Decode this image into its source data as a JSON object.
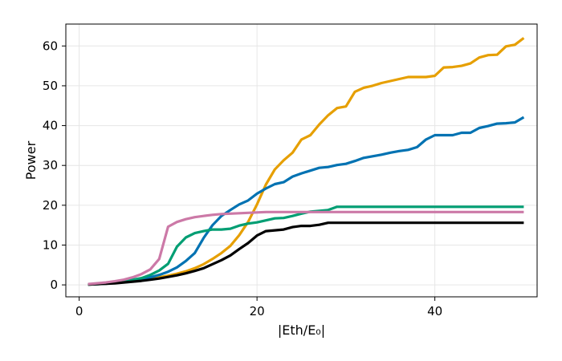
{
  "chart_data": {
    "type": "line",
    "title": "",
    "xlabel": "|Eth/E₀|",
    "ylabel": "Power",
    "xlim": [
      -1.5,
      51.5
    ],
    "ylim": [
      -3,
      65.5
    ],
    "xticks": [
      0,
      20,
      40
    ],
    "yticks": [
      0,
      10,
      20,
      30,
      40,
      50,
      60
    ],
    "grid": true,
    "legend": "none",
    "x": [
      1,
      2,
      3,
      4,
      5,
      6,
      7,
      8,
      9,
      10,
      11,
      12,
      13,
      14,
      15,
      16,
      17,
      18,
      19,
      20,
      21,
      22,
      23,
      24,
      25,
      26,
      27,
      28,
      29,
      30,
      31,
      32,
      33,
      34,
      35,
      36,
      37,
      38,
      39,
      40,
      41,
      42,
      43,
      44,
      45,
      46,
      47,
      48,
      49,
      50
    ],
    "series": [
      {
        "color": "#E69F00",
        "values": [
          0.1,
          0.2,
          0.3,
          0.5,
          0.7,
          0.9,
          1.2,
          1.5,
          1.9,
          2.3,
          2.8,
          3.4,
          4.2,
          5.2,
          6.5,
          8.0,
          9.8,
          12.5,
          15.8,
          20.2,
          25.2,
          29.0,
          31.3,
          33.2,
          36.5,
          37.6,
          40.3,
          42.6,
          44.4,
          44.8,
          48.5,
          49.5,
          50.0,
          50.7,
          51.2,
          51.7,
          52.2,
          52.2,
          52.2,
          52.5,
          54.6,
          54.7,
          55.0,
          55.6,
          57.1,
          57.7,
          57.8,
          59.9,
          60.3,
          62.0
        ]
      },
      {
        "color": "#0072B2",
        "values": [
          0.1,
          0.2,
          0.3,
          0.5,
          0.7,
          1.0,
          1.4,
          1.9,
          2.5,
          3.3,
          4.4,
          6.0,
          8.0,
          11.8,
          15.0,
          17.3,
          18.8,
          20.2,
          21.2,
          22.9,
          24.2,
          25.3,
          25.8,
          27.2,
          28.0,
          28.7,
          29.4,
          29.6,
          30.1,
          30.4,
          31.1,
          31.9,
          32.3,
          32.7,
          33.2,
          33.6,
          33.9,
          34.6,
          36.5,
          37.6,
          37.6,
          37.6,
          38.2,
          38.2,
          39.4,
          39.9,
          40.5,
          40.6,
          40.8,
          42.1
        ]
      },
      {
        "color": "#009E73",
        "values": [
          0.1,
          0.2,
          0.4,
          0.6,
          0.9,
          1.3,
          1.7,
          2.5,
          3.6,
          5.3,
          9.6,
          11.9,
          13.0,
          13.5,
          13.9,
          13.9,
          14.1,
          14.9,
          15.4,
          15.7,
          16.2,
          16.7,
          16.8,
          17.3,
          17.9,
          18.4,
          18.6,
          18.8,
          19.6,
          19.6,
          19.6,
          19.6,
          19.6,
          19.6,
          19.6,
          19.6,
          19.6,
          19.6,
          19.6,
          19.6,
          19.6,
          19.6,
          19.6,
          19.6,
          19.6,
          19.6,
          19.6,
          19.6,
          19.6,
          19.6
        ]
      },
      {
        "color": "#000000",
        "values": [
          0.1,
          0.2,
          0.3,
          0.4,
          0.6,
          0.8,
          1.0,
          1.3,
          1.6,
          2.0,
          2.4,
          2.9,
          3.5,
          4.2,
          5.2,
          6.2,
          7.4,
          9.0,
          10.5,
          12.4,
          13.5,
          13.7,
          13.9,
          14.5,
          14.8,
          14.8,
          15.1,
          15.6,
          15.6,
          15.6,
          15.6,
          15.6,
          15.6,
          15.6,
          15.6,
          15.6,
          15.6,
          15.6,
          15.6,
          15.6,
          15.6,
          15.6,
          15.6,
          15.6,
          15.6,
          15.6,
          15.6,
          15.6,
          15.6,
          15.6
        ]
      },
      {
        "color": "#CC79A7",
        "values": [
          0.2,
          0.4,
          0.6,
          0.9,
          1.3,
          1.9,
          2.7,
          3.9,
          6.5,
          14.6,
          15.8,
          16.5,
          17.0,
          17.3,
          17.6,
          17.8,
          17.9,
          18.0,
          18.1,
          18.2,
          18.3,
          18.3,
          18.3,
          18.3,
          18.3,
          18.3,
          18.3,
          18.3,
          18.3,
          18.3,
          18.3,
          18.3,
          18.3,
          18.3,
          18.3,
          18.3,
          18.3,
          18.3,
          18.3,
          18.3,
          18.3,
          18.3,
          18.3,
          18.3,
          18.3,
          18.3,
          18.3,
          18.3,
          18.3,
          18.3
        ]
      }
    ]
  }
}
